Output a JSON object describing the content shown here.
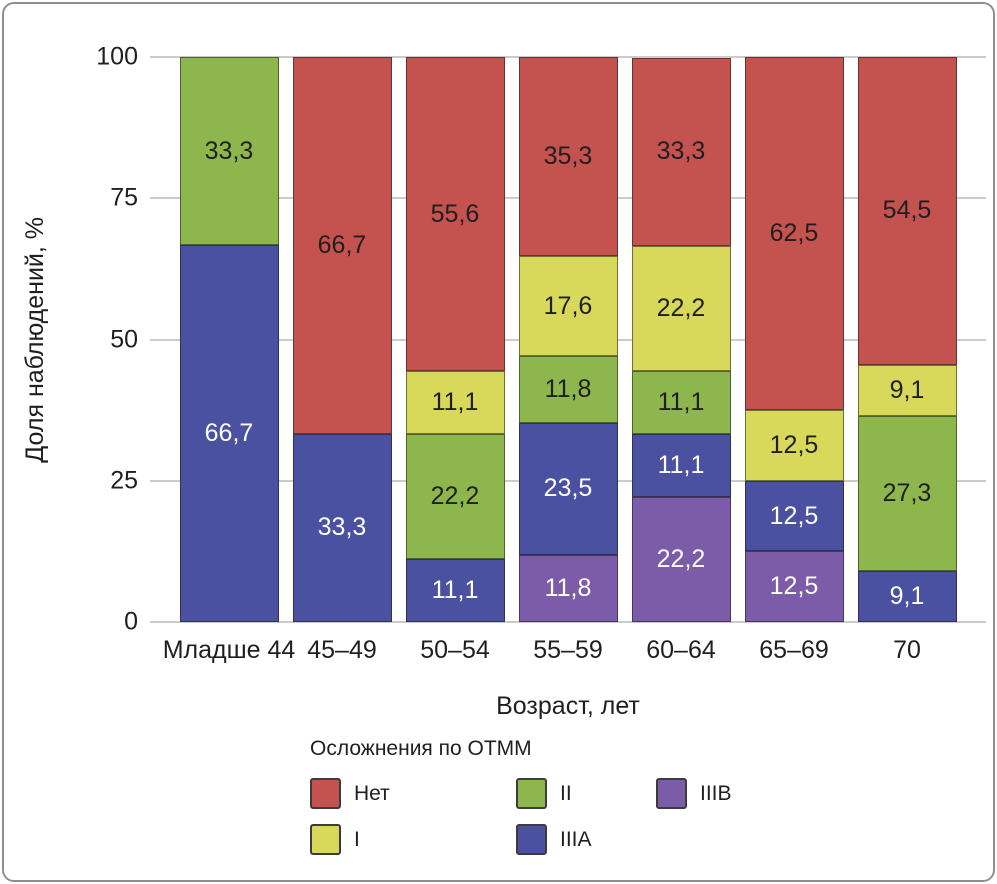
{
  "frame": {
    "border_color": "#8f8f8f"
  },
  "chart_data": {
    "type": "bar",
    "stacked": true,
    "percent": true,
    "title": "",
    "ylabel": "Доля наблюдений, %",
    "xlabel": "Возраст, лет",
    "ylim": [
      0,
      100
    ],
    "yticks": [
      0,
      25,
      50,
      75,
      100
    ],
    "grid": true,
    "legend_position": "bottom",
    "categories": [
      "Младше 44",
      "45–49",
      "50–54",
      "55–59",
      "60–64",
      "65–69",
      "70"
    ],
    "series": [
      {
        "name": "IIIB",
        "color": "#7c5ca8",
        "label_color": "#ffffff",
        "values": [
          0,
          0,
          0,
          11.8,
          22.2,
          12.5,
          0
        ]
      },
      {
        "name": "IIIA",
        "color": "#4a51a0",
        "label_color": "#ffffff",
        "values": [
          66.7,
          33.3,
          11.1,
          23.5,
          11.1,
          12.5,
          9.1
        ]
      },
      {
        "name": "II",
        "color": "#8db64d",
        "label_color": "#1f1f1f",
        "values": [
          33.3,
          0,
          22.2,
          11.8,
          11.1,
          0,
          27.3
        ]
      },
      {
        "name": "I",
        "color": "#d8d95a",
        "label_color": "#1f1f1f",
        "values": [
          0,
          0,
          11.1,
          17.6,
          22.2,
          12.5,
          9.1
        ]
      },
      {
        "name": "Нет",
        "color": "#c4524e",
        "label_color": "#1f1f1f",
        "values": [
          0,
          66.7,
          55.6,
          35.3,
          33.3,
          62.5,
          54.5
        ]
      }
    ],
    "legend": {
      "title": "Осложнения по ОТММ",
      "entries": [
        {
          "label": "Нет",
          "color": "#c4524e"
        },
        {
          "label": "II",
          "color": "#8db64d"
        },
        {
          "label": "IIIB",
          "color": "#7c5ca8"
        },
        {
          "label": "I",
          "color": "#d8d95a"
        },
        {
          "label": "IIIA",
          "color": "#4a51a0"
        }
      ]
    }
  }
}
